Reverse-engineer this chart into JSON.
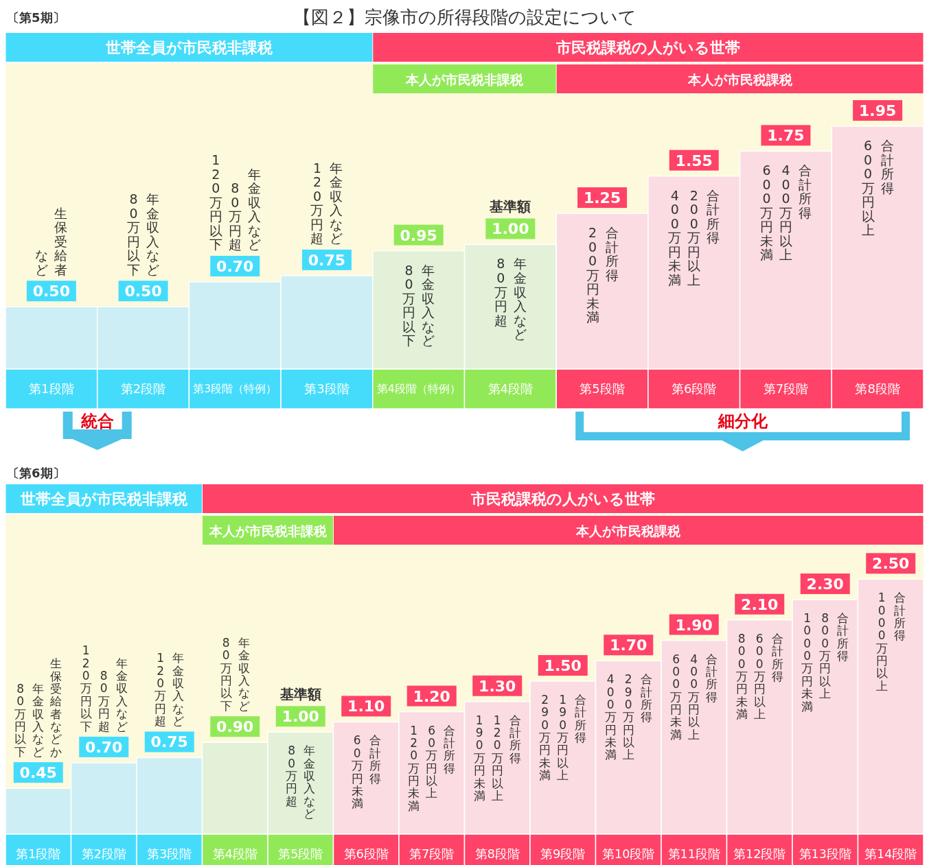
{
  "chart_data": [
    {
      "type": "bar",
      "title": "【図２】宗像市の所得段階の設定について",
      "subtitle": "〔第5期〕",
      "categories": [
        "第1段階",
        "第2段階",
        "第3段階（特例）",
        "第3段階",
        "第4段階（特例）",
        "第4段階",
        "第5段階",
        "第6段階",
        "第7段階",
        "第8段階"
      ],
      "values": [
        0.5,
        0.5,
        0.7,
        0.75,
        0.95,
        1.0,
        1.25,
        1.55,
        1.75,
        1.95
      ],
      "value_labels": [
        "0.50",
        "0.50",
        "0.70",
        "0.75",
        "0.95",
        "1.00",
        "1.25",
        "1.55",
        "1.75",
        "1.95"
      ],
      "colors": [
        "#cdeef5",
        "#cdeef5",
        "#cdeef5",
        "#cdeef5",
        "#e2f1d8",
        "#e2f1d8",
        "#fbdce2",
        "#fbdce2",
        "#fbdce2",
        "#fbdce2"
      ],
      "annotations": [
        {
          "text": "基準額",
          "x": "第4段階",
          "y": 1.0
        },
        "世帯全員が市民税非課税",
        "市民税課税の人がいる世帯",
        "本人が市民税非課税",
        "本人が市民税課税",
        {
          "text": "生保受給者",
          "x": "第1段階",
          "y": 0.5
        },
        {
          "text": "など",
          "x": "第1段階",
          "y": 0.5
        },
        {
          "text": "年金収入など",
          "x": "第2段階",
          "y": 0.5
        },
        {
          "text": "80万円以下",
          "x": "第2段階",
          "y": 0.5
        },
        {
          "text": "年金収入など",
          "x": "第3段階（特例）",
          "y": 0.7
        },
        {
          "text": "80万円超",
          "x": "第3段階（特例）",
          "y": 0.7
        },
        {
          "text": "120万円以下",
          "x": "第3段階（特例）",
          "y": 0.7
        },
        {
          "text": "年金収入など",
          "x": "第3段階",
          "y": 0.75
        },
        {
          "text": "120万円超",
          "x": "第3段階",
          "y": 0.75
        },
        {
          "text": "年金収入など",
          "x": "第4段階（特例）",
          "y": 0.95
        },
        {
          "text": "80万円以下",
          "x": "第4段階（特例）",
          "y": 0.95
        },
        {
          "text": "年金収入など",
          "x": "第4段階",
          "y": 1.0
        },
        {
          "text": "80万円超",
          "x": "第4段階",
          "y": 1.0
        },
        {
          "text": "合計所得",
          "x": "第5段階",
          "y": 1.25
        },
        {
          "text": "200万円未満",
          "x": "第5段階",
          "y": 1.25
        },
        {
          "text": "合計所得",
          "x": "第6段階",
          "y": 1.55
        },
        {
          "text": "200万円以上",
          "x": "第6段階",
          "y": 1.55
        },
        {
          "text": "400万円未満",
          "x": "第6段階",
          "y": 1.55
        },
        {
          "text": "合計所得",
          "x": "第7段階",
          "y": 1.75
        },
        {
          "text": "400万円以上",
          "x": "第7段階",
          "y": 1.75
        },
        {
          "text": "600万円未満",
          "x": "第7段階",
          "y": 1.75
        },
        {
          "text": "合計所得",
          "x": "第8段階",
          "y": 1.95
        },
        {
          "text": "600万円以上",
          "x": "第8段階",
          "y": 1.95
        },
        "統合",
        "細分化"
      ]
    },
    {
      "type": "bar",
      "subtitle": "〔第6期〕",
      "categories": [
        "第1段階",
        "第2段階",
        "第3段階",
        "第4段階",
        "第5段階",
        "第6段階",
        "第7段階",
        "第8段階",
        "第9段階",
        "第10段階",
        "第11段階",
        "第12段階",
        "第13段階",
        "第14段階"
      ],
      "values": [
        0.45,
        0.7,
        0.75,
        0.9,
        1.0,
        1.1,
        1.2,
        1.3,
        1.5,
        1.7,
        1.9,
        2.1,
        2.3,
        2.5
      ],
      "value_labels": [
        "0.45",
        "0.70",
        "0.75",
        "0.90",
        "1.00",
        "1.10",
        "1.20",
        "1.30",
        "1.50",
        "1.70",
        "1.90",
        "2.10",
        "2.30",
        "2.50"
      ],
      "colors": [
        "#cdeef5",
        "#cdeef5",
        "#cdeef5",
        "#e2f1d8",
        "#e2f1d8",
        "#fbdce2",
        "#fbdce2",
        "#fbdce2",
        "#fbdce2",
        "#fbdce2",
        "#fbdce2",
        "#fbdce2",
        "#fbdce2",
        "#fbdce2"
      ],
      "annotations": [
        {
          "text": "基準額",
          "x": "第5段階",
          "y": 1.0
        },
        "世帯全員が市民税非課税",
        "市民税課税の人がいる世帯",
        "本人が市民税非課税",
        "本人が市民税課税",
        {
          "text": "生保受給者などか",
          "x": "第1段階",
          "y": 0.45
        },
        {
          "text": "年金収入など",
          "x": "第1段階",
          "y": 0.45
        },
        {
          "text": "80万円以下",
          "x": "第1段階",
          "y": 0.45
        },
        {
          "text": "年金収入など",
          "x": "第2段階",
          "y": 0.7
        },
        {
          "text": "80万円超",
          "x": "第2段階",
          "y": 0.7
        },
        {
          "text": "120万円以下",
          "x": "第2段階",
          "y": 0.7
        },
        {
          "text": "年金収入など",
          "x": "第3段階",
          "y": 0.75
        },
        {
          "text": "120万円超",
          "x": "第3段階",
          "y": 0.75
        },
        {
          "text": "年金収入など",
          "x": "第4段階",
          "y": 0.9
        },
        {
          "text": "80万円以下",
          "x": "第4段階",
          "y": 0.9
        },
        {
          "text": "年金収入など",
          "x": "第5段階",
          "y": 1.0
        },
        {
          "text": "80万円超",
          "x": "第5段階",
          "y": 1.0
        },
        {
          "text": "合計所得",
          "x": "第6段階",
          "y": 1.1
        },
        {
          "text": "60万円未満",
          "x": "第6段階",
          "y": 1.1
        },
        {
          "text": "合計所得",
          "x": "第7段階",
          "y": 1.2
        },
        {
          "text": "60万円以上",
          "x": "第7段階",
          "y": 1.2
        },
        {
          "text": "120万円未満",
          "x": "第7段階",
          "y": 1.2
        },
        {
          "text": "合計所得",
          "x": "第8段階",
          "y": 1.3
        },
        {
          "text": "120万円以上",
          "x": "第8段階",
          "y": 1.3
        },
        {
          "text": "190万円未満",
          "x": "第8段階",
          "y": 1.3
        },
        {
          "text": "合計所得",
          "x": "第9段階",
          "y": 1.5
        },
        {
          "text": "190万円以上",
          "x": "第9段階",
          "y": 1.5
        },
        {
          "text": "290万円未満",
          "x": "第9段階",
          "y": 1.5
        },
        {
          "text": "合計所得",
          "x": "第10段階",
          "y": 1.7
        },
        {
          "text": "290万円以上",
          "x": "第10段階",
          "y": 1.7
        },
        {
          "text": "400万円未満",
          "x": "第10段階",
          "y": 1.7
        },
        {
          "text": "合計所得",
          "x": "第11段階",
          "y": 1.9
        },
        {
          "text": "400万円以上",
          "x": "第11段階",
          "y": 1.9
        },
        {
          "text": "600万円未満",
          "x": "第11段階",
          "y": 1.9
        },
        {
          "text": "合計所得",
          "x": "第12段階",
          "y": 2.1
        },
        {
          "text": "600万円以上",
          "x": "第12段階",
          "y": 2.1
        },
        {
          "text": "800万円未満",
          "x": "第12段階",
          "y": 2.1
        },
        {
          "text": "合計所得",
          "x": "第13段階",
          "y": 2.3
        },
        {
          "text": "800万円以上",
          "x": "第13段階",
          "y": 2.3
        },
        {
          "text": "1000万円未満",
          "x": "第13段階",
          "y": 2.3
        },
        {
          "text": "合計所得",
          "x": "第14段階",
          "y": 2.5
        },
        {
          "text": "1000万円以上",
          "x": "第14段階",
          "y": 2.5
        }
      ]
    }
  ]
}
